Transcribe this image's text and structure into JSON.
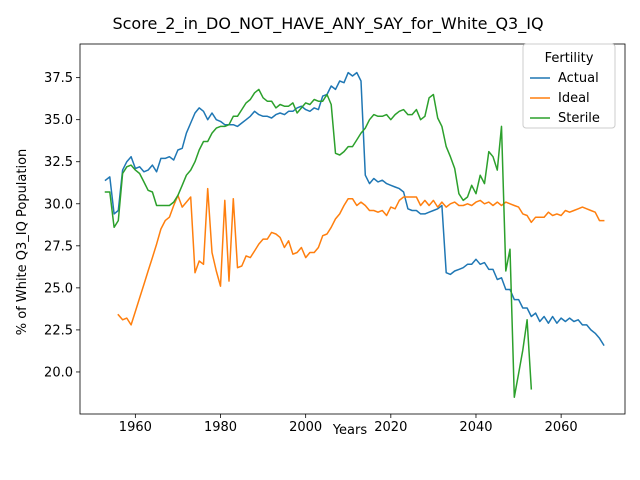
{
  "chart_data": {
    "type": "line",
    "title": "Score_2_in_DO_NOT_HAVE_ANY_SAY_for_White_Q3_IQ",
    "xlabel": "Years",
    "ylabel": "% of White Q3_IQ Population",
    "xlim": [
      1947,
      2075
    ],
    "ylim": [
      17.5,
      39.5
    ],
    "xticks": [
      1960,
      1980,
      2000,
      2020,
      2040,
      2060
    ],
    "yticks": [
      20.0,
      22.5,
      25.0,
      27.5,
      30.0,
      32.5,
      35.0,
      37.5
    ],
    "xtick_labels": [
      "1960",
      "1980",
      "2000",
      "2020",
      "2040",
      "2060"
    ],
    "ytick_labels": [
      "20.0",
      "22.5",
      "25.0",
      "27.5",
      "30.0",
      "32.5",
      "35.0",
      "37.5"
    ],
    "grid": false,
    "legend": {
      "title": "Fertility",
      "position": "top-right"
    },
    "series": [
      {
        "name": "Actual",
        "color": "#1f77b4",
        "x": [
          1953,
          1954,
          1955,
          1956,
          1957,
          1958,
          1959,
          1960,
          1961,
          1962,
          1963,
          1964,
          1965,
          1966,
          1967,
          1968,
          1969,
          1970,
          1971,
          1972,
          1973,
          1974,
          1975,
          1976,
          1977,
          1978,
          1979,
          1980,
          1981,
          1982,
          1983,
          1984,
          1985,
          1986,
          1987,
          1988,
          1989,
          1990,
          1991,
          1992,
          1993,
          1994,
          1995,
          1996,
          1997,
          1998,
          1999,
          2000,
          2001,
          2002,
          2003,
          2004,
          2005,
          2006,
          2007,
          2008,
          2009,
          2010,
          2011,
          2012,
          2013,
          2014,
          2015,
          2016,
          2017,
          2018,
          2019,
          2020,
          2021,
          2022,
          2023,
          2024,
          2025,
          2026,
          2027,
          2028,
          2029,
          2030,
          2031,
          2032,
          2033,
          2034,
          2035,
          2036,
          2037,
          2038,
          2039,
          2040,
          2041,
          2042,
          2043,
          2044,
          2045,
          2046,
          2047,
          2048,
          2049,
          2050,
          2051,
          2052,
          2053,
          2054,
          2055,
          2056,
          2057,
          2058,
          2059,
          2060,
          2061,
          2062,
          2063,
          2064,
          2065,
          2066,
          2067,
          2068,
          2069,
          2070
        ],
        "values": [
          31.4,
          31.6,
          29.4,
          29.6,
          32.0,
          32.5,
          32.8,
          32.1,
          32.2,
          31.9,
          32.0,
          32.3,
          31.9,
          32.7,
          32.7,
          32.8,
          32.6,
          33.2,
          33.3,
          34.2,
          34.8,
          35.4,
          35.7,
          35.5,
          35.0,
          35.4,
          35.0,
          34.9,
          34.7,
          34.7,
          34.7,
          34.6,
          34.8,
          35.0,
          35.2,
          35.5,
          35.3,
          35.2,
          35.2,
          35.1,
          35.3,
          35.4,
          35.3,
          35.5,
          35.5,
          35.7,
          35.8,
          35.6,
          35.5,
          35.7,
          35.6,
          36.4,
          36.5,
          37.0,
          36.8,
          37.3,
          37.2,
          37.8,
          37.6,
          37.8,
          37.3,
          31.7,
          31.2,
          31.5,
          31.3,
          31.4,
          31.2,
          31.1,
          31.0,
          30.9,
          30.7,
          29.7,
          29.6,
          29.6,
          29.4,
          29.4,
          29.5,
          29.6,
          29.7,
          29.9,
          25.9,
          25.8,
          26.0,
          26.1,
          26.2,
          26.4,
          26.4,
          26.7,
          26.4,
          26.5,
          26.1,
          26.1,
          25.5,
          25.6,
          24.9,
          24.9,
          24.3,
          24.3,
          23.8,
          23.8,
          23.3,
          23.5,
          23.0,
          23.3,
          22.9,
          23.3,
          22.9,
          23.2,
          23.0,
          23.2,
          23.0,
          23.1,
          22.8,
          22.8,
          22.5,
          22.3,
          22.0,
          21.6
        ]
      },
      {
        "name": "Ideal",
        "color": "#ff7f0e",
        "x": [
          1956,
          1957,
          1958,
          1959,
          1960,
          1961,
          1962,
          1963,
          1964,
          1965,
          1966,
          1967,
          1968,
          1969,
          1970,
          1971,
          1972,
          1973,
          1974,
          1975,
          1976,
          1977,
          1978,
          1979,
          1980,
          1981,
          1982,
          1983,
          1984,
          1985,
          1986,
          1987,
          1988,
          1989,
          1990,
          1991,
          1992,
          1993,
          1994,
          1995,
          1996,
          1997,
          1998,
          1999,
          2000,
          2001,
          2002,
          2003,
          2004,
          2005,
          2006,
          2007,
          2008,
          2009,
          2010,
          2011,
          2012,
          2013,
          2014,
          2015,
          2016,
          2017,
          2018,
          2019,
          2020,
          2021,
          2022,
          2023,
          2024,
          2025,
          2026,
          2027,
          2028,
          2029,
          2030,
          2031,
          2032,
          2033,
          2034,
          2035,
          2036,
          2037,
          2038,
          2039,
          2040,
          2041,
          2042,
          2043,
          2044,
          2045,
          2046,
          2047,
          2048,
          2049,
          2050,
          2051,
          2052,
          2053,
          2054,
          2055,
          2056,
          2057,
          2058,
          2059,
          2060,
          2061,
          2062,
          2063,
          2064,
          2065,
          2066,
          2067,
          2068,
          2069,
          2070
        ],
        "values": [
          23.4,
          23.1,
          23.2,
          22.8,
          23.6,
          24.4,
          25.2,
          26.0,
          26.8,
          27.6,
          28.5,
          29.0,
          29.2,
          29.9,
          30.5,
          29.8,
          30.1,
          30.4,
          25.9,
          26.6,
          26.4,
          30.9,
          27.1,
          26.0,
          25.1,
          30.2,
          25.4,
          30.3,
          26.2,
          26.3,
          26.9,
          26.8,
          27.2,
          27.6,
          27.9,
          27.9,
          28.3,
          28.2,
          28.0,
          27.4,
          27.8,
          27.0,
          27.1,
          27.4,
          26.8,
          27.1,
          27.1,
          27.4,
          28.1,
          28.2,
          28.6,
          29.1,
          29.4,
          29.9,
          30.3,
          30.3,
          29.9,
          30.1,
          29.9,
          29.6,
          29.6,
          29.5,
          29.6,
          29.3,
          29.8,
          29.7,
          30.2,
          30.4,
          30.4,
          30.4,
          30.4,
          29.9,
          30.2,
          29.9,
          30.2,
          29.8,
          30.1,
          29.8,
          30.0,
          30.1,
          29.9,
          29.9,
          30.0,
          29.9,
          30.1,
          30.2,
          30.0,
          30.1,
          29.9,
          30.1,
          29.9,
          30.1,
          30.0,
          29.9,
          29.8,
          29.4,
          29.3,
          28.9,
          29.2,
          29.2,
          29.2,
          29.5,
          29.3,
          29.4,
          29.3,
          29.6,
          29.5,
          29.6,
          29.7,
          29.8,
          29.7,
          29.6,
          29.5,
          29.0,
          29.0
        ]
      },
      {
        "name": "Sterile",
        "color": "#2ca02c",
        "x": [
          1953,
          1954,
          1955,
          1956,
          1957,
          1958,
          1959,
          1960,
          1961,
          1962,
          1963,
          1964,
          1965,
          1966,
          1967,
          1968,
          1969,
          1970,
          1971,
          1972,
          1973,
          1974,
          1975,
          1976,
          1977,
          1978,
          1979,
          1980,
          1981,
          1982,
          1983,
          1984,
          1985,
          1986,
          1987,
          1988,
          1989,
          1990,
          1991,
          1992,
          1993,
          1994,
          1995,
          1996,
          1997,
          1998,
          1999,
          2000,
          2001,
          2002,
          2003,
          2004,
          2005,
          2006,
          2007,
          2008,
          2009,
          2010,
          2011,
          2012,
          2013,
          2014,
          2015,
          2016,
          2017,
          2018,
          2019,
          2020,
          2021,
          2022,
          2023,
          2024,
          2025,
          2026,
          2027,
          2028,
          2029,
          2030,
          2031,
          2032,
          2033,
          2034,
          2035,
          2036,
          2037,
          2038,
          2039,
          2040,
          2041,
          2042,
          2043,
          2044,
          2045,
          2046,
          2047,
          2048,
          2049,
          2050,
          2051,
          2052,
          2053
        ],
        "values": [
          30.7,
          30.7,
          28.6,
          29.0,
          31.8,
          32.2,
          32.3,
          32.0,
          31.8,
          31.3,
          30.8,
          30.7,
          29.9,
          29.9,
          29.9,
          29.9,
          30.1,
          30.5,
          31.1,
          31.7,
          32.0,
          32.5,
          33.2,
          33.7,
          33.7,
          34.2,
          34.5,
          34.6,
          34.6,
          34.7,
          35.2,
          35.2,
          35.6,
          36.0,
          36.2,
          36.6,
          36.8,
          36.3,
          36.1,
          36.1,
          35.7,
          35.9,
          35.8,
          35.8,
          36.0,
          35.4,
          35.7,
          36.0,
          35.9,
          36.2,
          36.1,
          36.1,
          36.5,
          35.9,
          33.0,
          32.9,
          33.1,
          33.4,
          33.4,
          33.8,
          34.2,
          34.5,
          35.0,
          35.3,
          35.2,
          35.2,
          35.3,
          35.0,
          35.3,
          35.5,
          35.6,
          35.3,
          35.3,
          35.6,
          35.0,
          35.2,
          36.3,
          36.5,
          35.1,
          34.6,
          33.4,
          32.8,
          32.1,
          30.6,
          30.2,
          30.4,
          31.1,
          30.6,
          31.7,
          31.2,
          33.1,
          32.8,
          32.0,
          34.6,
          26.0,
          27.3,
          18.5,
          19.9,
          21.3,
          23.1,
          19.0
        ]
      }
    ]
  }
}
